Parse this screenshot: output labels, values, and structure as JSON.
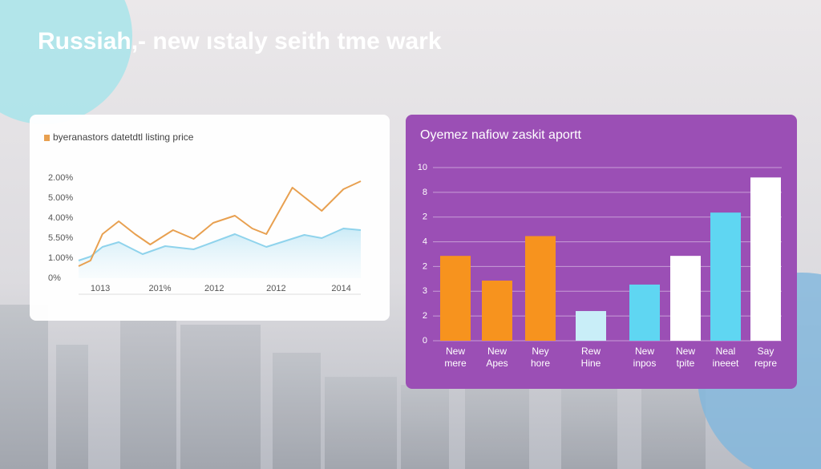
{
  "title": "Russiah,- new ıstaly seith tme wark",
  "chart_data": [
    {
      "type": "line",
      "series": [
        {
          "name": "byeranastors datetdtl listing price",
          "color": "#e8a050",
          "x": [
            0,
            0.55,
            1.1,
            1.85,
            2.6,
            3.3,
            4.35,
            5.3,
            6.2,
            7.2,
            8.0,
            8.65,
            9.85,
            11.2,
            12.2,
            13
          ],
          "values": [
            0.6,
            0.88,
            2.2,
            2.84,
            2.2,
            1.68,
            2.4,
            1.96,
            2.76,
            3.12,
            2.48,
            2.2,
            4.52,
            3.36,
            4.44,
            4.84
          ]
        },
        {
          "color": "#8fd3ec",
          "x": [
            0,
            0.55,
            1.1,
            1.85,
            2.95,
            3.99,
            5.3,
            7.2,
            8.65,
            10.4,
            11.2,
            12.2,
            13
          ],
          "values": [
            0.88,
            1.08,
            1.56,
            1.8,
            1.2,
            1.6,
            1.44,
            2.2,
            1.56,
            2.16,
            2.0,
            2.48,
            2.4
          ]
        }
      ],
      "xlim": [
        0,
        13
      ],
      "xticks": [
        {
          "value": 1,
          "label": "1013"
        },
        {
          "value": 3.75,
          "label": "201%"
        },
        {
          "value": 6.25,
          "label": "2012"
        },
        {
          "value": 9.1,
          "label": "2012"
        },
        {
          "value": 12.1,
          "label": "2014"
        }
      ],
      "ylim": [
        0,
        5
      ],
      "yticks": [
        {
          "value": 5,
          "label": "2.00%"
        },
        {
          "value": 4,
          "label": "5.00%"
        },
        {
          "value": 3,
          "label": "4.00%"
        },
        {
          "value": 2,
          "label": "5.50%"
        },
        {
          "value": 1,
          "label": "1.00%"
        },
        {
          "value": 0,
          "label": "0%"
        }
      ],
      "legend": "top-left"
    },
    {
      "type": "bar",
      "title": "Oyemez nafiow zaskit aportt",
      "categories": [
        [
          "New",
          "mere"
        ],
        [
          "New",
          "Apes"
        ],
        [
          "Ney",
          "hore"
        ],
        [
          "Rew",
          "Hine"
        ],
        [
          "New",
          "inpos"
        ],
        [
          "New",
          "tpite"
        ],
        [
          "Neal",
          "ineeet"
        ],
        [
          "Say",
          "repre"
        ]
      ],
      "values": [
        3.43,
        2.43,
        4.23,
        1.2,
        2.27,
        3.43,
        5.18,
        6.6
      ],
      "colors": [
        "#f7931e",
        "#f7931e",
        "#f7931e",
        "#c9eef8",
        "#5fd6f2",
        "#ffffff",
        "#5fd6f2",
        "#ffffff"
      ],
      "ylim": [
        0,
        7
      ],
      "yticks": [
        {
          "value": 7,
          "label": "10"
        },
        {
          "value": 6,
          "label": "8"
        },
        {
          "value": 5,
          "label": "2"
        },
        {
          "value": 4,
          "label": "4"
        },
        {
          "value": 3,
          "label": "2"
        },
        {
          "value": 2,
          "label": "3"
        },
        {
          "value": 1,
          "label": "2"
        },
        0
      ],
      "grid": true
    }
  ]
}
